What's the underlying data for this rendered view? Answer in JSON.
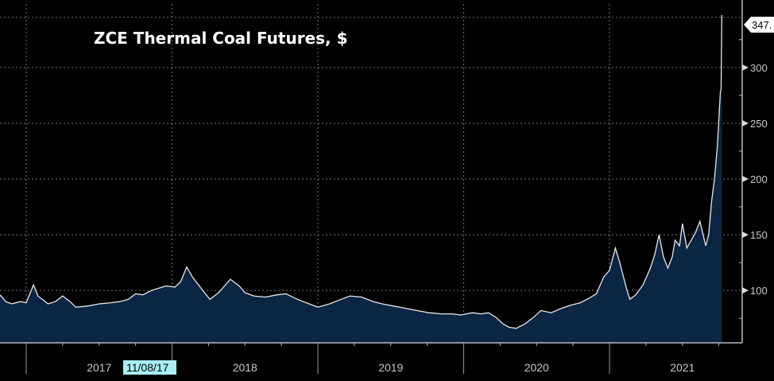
{
  "chart_data": {
    "type": "area",
    "title": "ZCE Thermal Coal Futures, $",
    "xlabel": "",
    "ylabel": "",
    "xlim": [
      2016.82,
      2021.91
    ],
    "ylim": [
      53,
      357
    ],
    "yticks": [
      100,
      150,
      200,
      250,
      300
    ],
    "ytick_labels": [
      "100",
      "150",
      "200",
      "250",
      "300"
    ],
    "xticks": [
      2017,
      2018,
      2019,
      2020,
      2021
    ],
    "xtick_labels": [
      "2017",
      "2018",
      "2019",
      "2020",
      "2021"
    ],
    "highlight_date_label": "11/08/17",
    "last_value_label": "347.",
    "grid": true,
    "colors": {
      "line": "#e8e8e8",
      "fill": "#0b2544",
      "background": "#000000",
      "highlight": "#a8f0f4"
    },
    "series": [
      {
        "name": "ZCE Thermal Coal Futures",
        "x": [
          2016.82,
          2016.86,
          2016.9,
          2016.96,
          2017.0,
          2017.05,
          2017.08,
          2017.15,
          2017.2,
          2017.25,
          2017.3,
          2017.34,
          2017.42,
          2017.5,
          2017.58,
          2017.64,
          2017.7,
          2017.75,
          2017.8,
          2017.86,
          2017.91,
          2017.96,
          2018.02,
          2018.06,
          2018.1,
          2018.14,
          2018.21,
          2018.26,
          2018.32,
          2018.4,
          2018.46,
          2018.5,
          2018.56,
          2018.64,
          2018.72,
          2018.78,
          2018.86,
          2018.94,
          2019.0,
          2019.08,
          2019.16,
          2019.22,
          2019.3,
          2019.38,
          2019.44,
          2019.52,
          2019.6,
          2019.68,
          2019.76,
          2019.85,
          2019.92,
          2019.98,
          2020.06,
          2020.12,
          2020.17,
          2020.22,
          2020.27,
          2020.31,
          2020.36,
          2020.42,
          2020.48,
          2020.53,
          2020.6,
          2020.67,
          2020.74,
          2020.8,
          2020.86,
          2020.91,
          2020.96,
          2021.0,
          2021.04,
          2021.07,
          2021.09,
          2021.12,
          2021.14,
          2021.18,
          2021.23,
          2021.28,
          2021.31,
          2021.34,
          2021.37,
          2021.4,
          2021.43,
          2021.45,
          2021.48,
          2021.5,
          2021.53,
          2021.56,
          2021.59,
          2021.62,
          2021.66,
          2021.68,
          2021.7,
          2021.72,
          2021.74,
          2021.76,
          2021.765,
          2021.77
        ],
        "values": [
          96,
          90,
          88,
          90,
          89,
          105,
          95,
          88,
          90,
          95,
          90,
          85,
          86,
          88,
          89,
          90,
          92,
          97,
          96,
          100,
          102,
          104,
          103,
          108,
          121,
          112,
          100,
          92,
          98,
          110,
          104,
          98,
          95,
          94,
          96,
          97,
          92,
          88,
          85,
          88,
          92,
          95,
          94,
          90,
          88,
          86,
          84,
          82,
          80,
          79,
          79,
          78,
          80,
          79,
          80,
          76,
          70,
          67,
          66,
          70,
          76,
          82,
          80,
          84,
          87,
          89,
          93,
          97,
          112,
          118,
          138,
          125,
          115,
          100,
          92,
          96,
          105,
          120,
          132,
          150,
          130,
          120,
          130,
          145,
          140,
          160,
          138,
          145,
          152,
          162,
          140,
          150,
          180,
          200,
          230,
          278,
          280,
          347
        ]
      }
    ]
  }
}
